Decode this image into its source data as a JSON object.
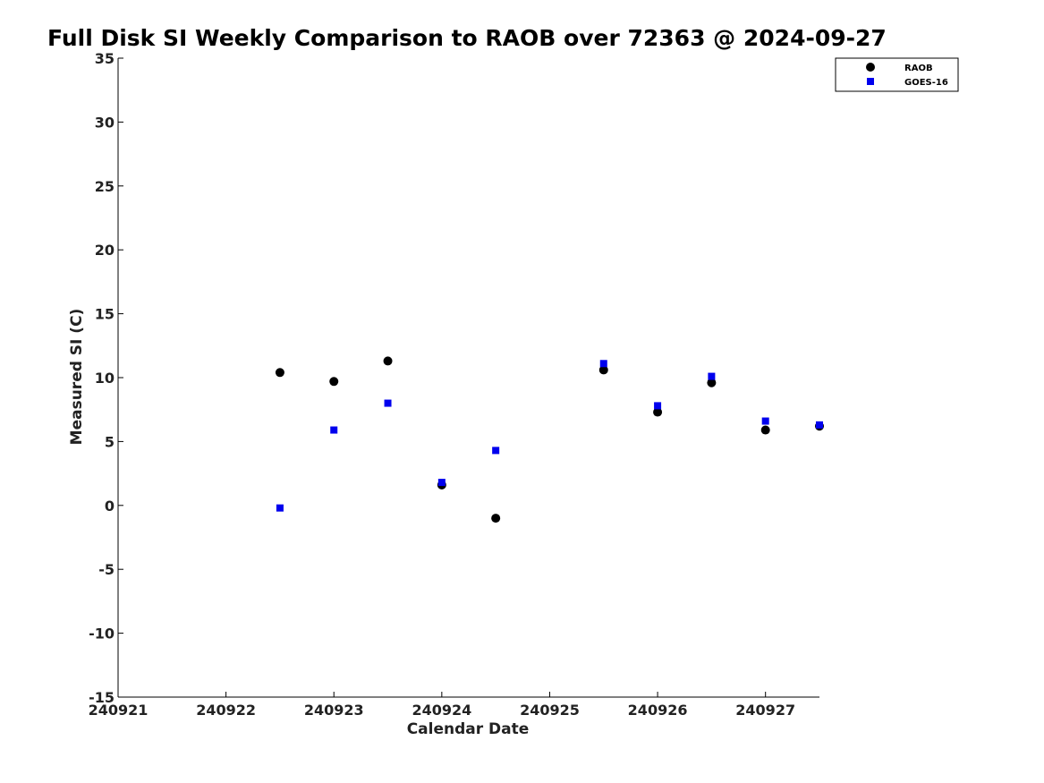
{
  "chart_data": {
    "type": "scatter",
    "title": "Full Disk SI Weekly Comparison to RAOB over 72363 @ 2024-09-27",
    "xlabel": "Calendar Date",
    "ylabel": "Measured SI (C)",
    "xlim": [
      "240921",
      "240927 12Z"
    ],
    "ylim": [
      -15,
      35
    ],
    "x_ticks": [
      "240921",
      "240922",
      "240923",
      "240924",
      "240925",
      "240926",
      "240927"
    ],
    "y_ticks": [
      "-15",
      "-10",
      "-5",
      "0",
      "5",
      "10",
      "15",
      "20",
      "25",
      "30",
      "35"
    ],
    "grid": false,
    "legend_position": "top-right",
    "series": [
      {
        "name": "RAOB",
        "marker": "circle",
        "color": "#000000",
        "points": [
          {
            "date": "240922 12Z",
            "y": 10.4
          },
          {
            "date": "240923 00Z",
            "y": 9.7
          },
          {
            "date": "240923 12Z",
            "y": 11.3
          },
          {
            "date": "240924 00Z",
            "y": 1.6
          },
          {
            "date": "240924 12Z",
            "y": -1.0
          },
          {
            "date": "240925 12Z",
            "y": 10.6
          },
          {
            "date": "240926 00Z",
            "y": 7.3
          },
          {
            "date": "240926 12Z",
            "y": 9.6
          },
          {
            "date": "240927 00Z",
            "y": 5.9
          },
          {
            "date": "240927 12Z",
            "y": 6.2
          }
        ]
      },
      {
        "name": "GOES-16",
        "marker": "square",
        "color": "#0000ee",
        "points": [
          {
            "date": "240922 12Z",
            "y": -0.2
          },
          {
            "date": "240923 00Z",
            "y": 5.9
          },
          {
            "date": "240923 12Z",
            "y": 8.0
          },
          {
            "date": "240924 00Z",
            "y": 1.8
          },
          {
            "date": "240924 12Z",
            "y": 4.3
          },
          {
            "date": "240925 12Z",
            "y": 11.1
          },
          {
            "date": "240926 00Z",
            "y": 7.8
          },
          {
            "date": "240926 12Z",
            "y": 10.1
          },
          {
            "date": "240927 00Z",
            "y": 6.6
          },
          {
            "date": "240927 12Z",
            "y": 6.3
          }
        ]
      }
    ]
  }
}
